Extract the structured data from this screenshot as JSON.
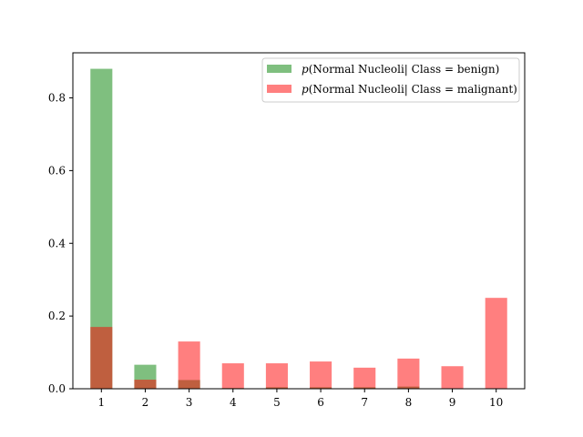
{
  "chart_data": {
    "type": "bar",
    "categories": [
      "1",
      "2",
      "3",
      "4",
      "5",
      "6",
      "7",
      "8",
      "9",
      "10"
    ],
    "series": [
      {
        "name": "p(Normal Nucleoli| Class = benign)",
        "legend_var": "p",
        "legend_rest": "(Normal Nucleoli| Class = benign)",
        "color": "#008000",
        "opacity": 0.5,
        "values": [
          0.88,
          0.066,
          0.024,
          0.002,
          0.004,
          0.004,
          0.004,
          0.006,
          0.0,
          0.0
        ]
      },
      {
        "name": "p(Normal Nucleoli| Class = malignant)",
        "legend_var": "p",
        "legend_rest": "(Normal Nucleoli| Class = malignant)",
        "color": "#ff0000",
        "opacity": 0.5,
        "values": [
          0.17,
          0.025,
          0.13,
          0.07,
          0.07,
          0.075,
          0.058,
          0.083,
          0.062,
          0.25
        ]
      }
    ],
    "yticks": [
      "0.0",
      "0.2",
      "0.4",
      "0.6",
      "0.8"
    ],
    "ytick_values": [
      0.0,
      0.2,
      0.4,
      0.6,
      0.8
    ],
    "ylim": [
      0,
      0.924
    ],
    "xlim": [
      0.35,
      10.65
    ],
    "bar_width_units": 0.5,
    "legend_position": "upper-right",
    "grid": false
  }
}
